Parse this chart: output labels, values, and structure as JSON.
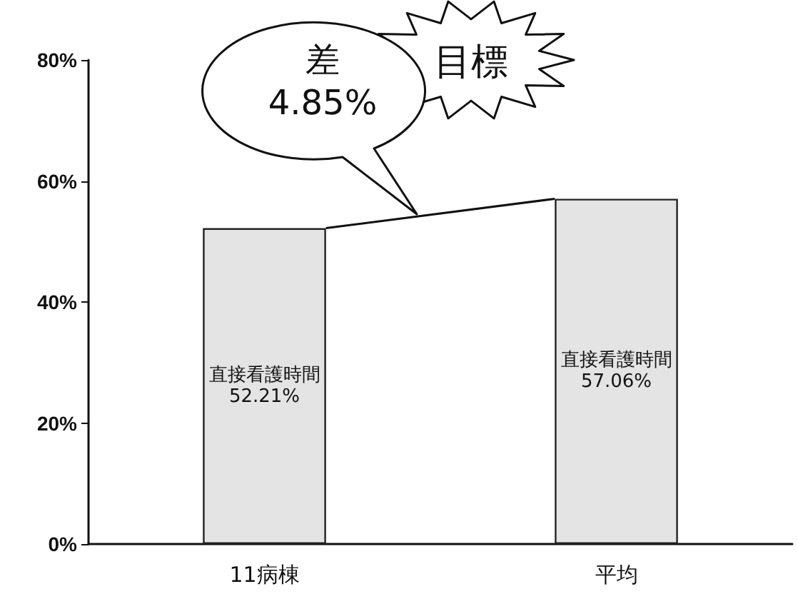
{
  "chart_data": {
    "type": "bar",
    "categories": [
      "11病棟",
      "平均"
    ],
    "values": [
      52.21,
      57.06
    ],
    "color": "#e4e4e4",
    "value_labels": [
      "直接看護時間\n52.21%",
      "直接看護時間\n57.06%"
    ],
    "ylim": [
      0,
      80
    ],
    "yticks": [
      {
        "value": 0,
        "label": "0%"
      },
      {
        "value": 20,
        "label": "20%"
      },
      {
        "value": 40,
        "label": "40%"
      },
      {
        "value": 60,
        "label": "60%"
      },
      {
        "value": 80,
        "label": "80%"
      }
    ],
    "grid": false,
    "annotations": [
      "差\n4.85%",
      "目標"
    ]
  }
}
